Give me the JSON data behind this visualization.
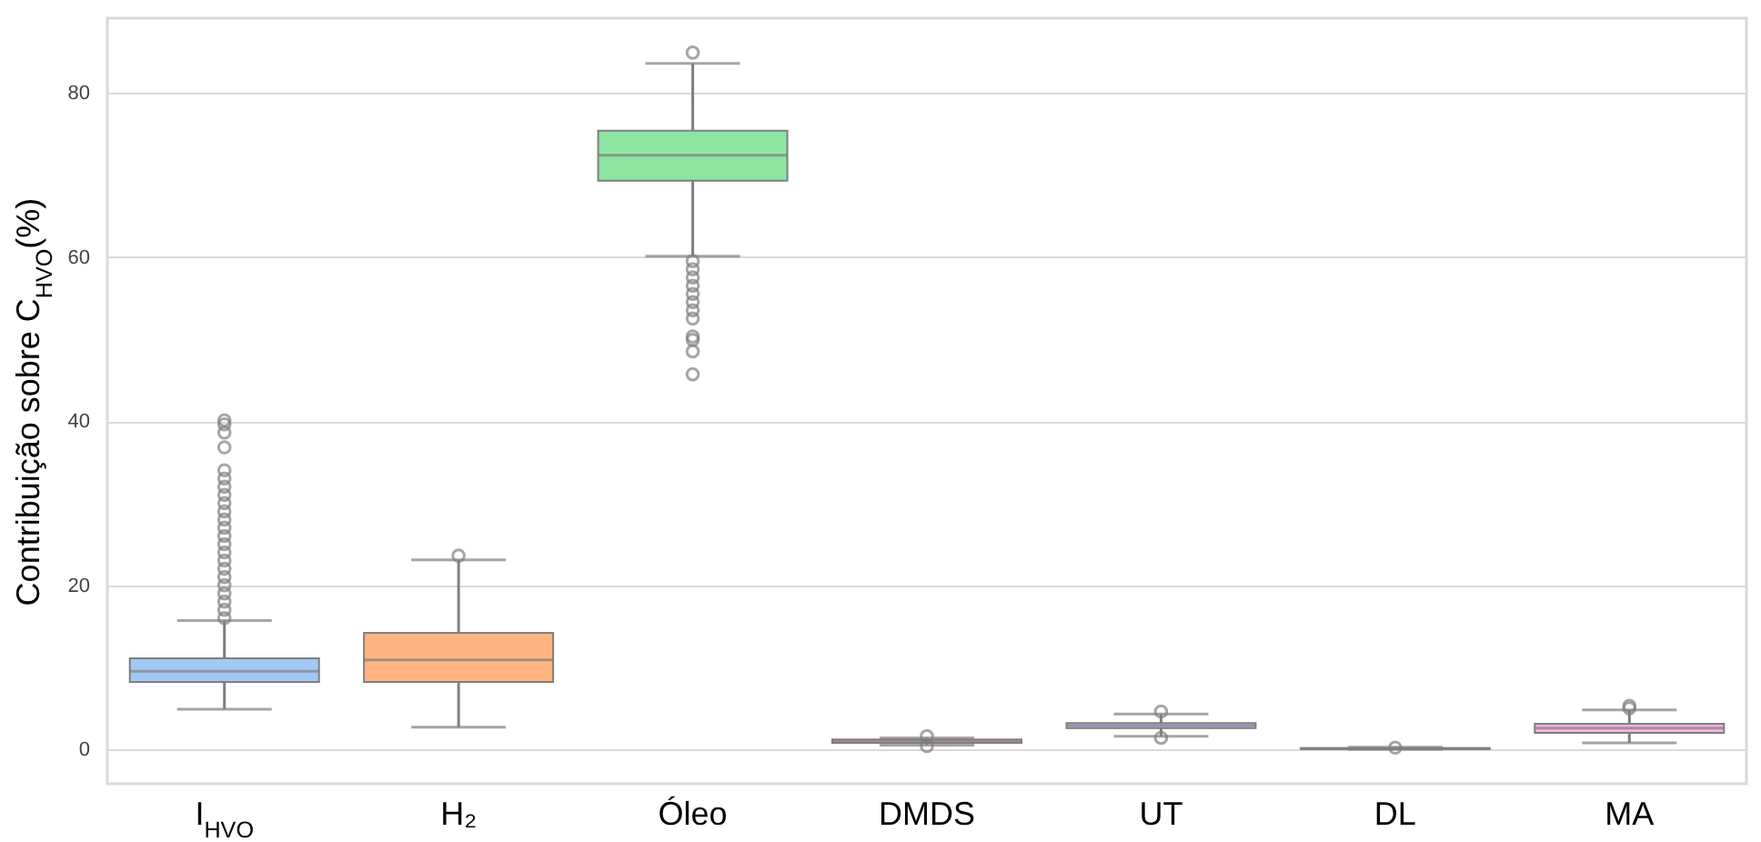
{
  "chart_data": {
    "type": "box",
    "ylabel": "Contribuição  sobre C$_{HVO}$(%)",
    "categories": [
      "I$_{HVO}$",
      "H₂",
      "Óleo",
      "DMDS",
      "UT",
      "DL",
      "MA"
    ],
    "colors": [
      "#a1c9f4",
      "#ffb482",
      "#8de5a1",
      "#ff9f9b",
      "#d0bbff",
      "#debb9b",
      "#fab0e4"
    ],
    "boxes": [
      {
        "low": 4.9,
        "q1": 8.2,
        "median": 9.5,
        "q3": 11.1,
        "high": 15.7,
        "outliers": [
          16,
          17,
          18,
          19,
          20,
          21,
          22,
          23,
          24,
          25,
          26,
          27,
          28,
          29,
          30,
          31,
          32,
          33,
          34,
          36.8,
          38.6,
          39.6,
          40.1
        ]
      },
      {
        "low": 2.7,
        "q1": 8.2,
        "median": 10.9,
        "q3": 14.2,
        "high": 23.1,
        "outliers": [
          23.6
        ]
      },
      {
        "low": 60.1,
        "q1": 69.3,
        "median": 72.4,
        "q3": 75.4,
        "high": 83.6,
        "outliers": [
          84.9,
          59.5,
          58.5,
          57.5,
          56.5,
          55.5,
          54.5,
          53.5,
          52.5,
          50.3,
          49.9,
          48.5,
          45.7
        ]
      },
      {
        "low": 0.5,
        "q1": 0.8,
        "median": 1.0,
        "q3": 1.2,
        "high": 1.4,
        "outliers": [
          0.4,
          1.6
        ]
      },
      {
        "low": 1.6,
        "q1": 2.6,
        "median": 2.9,
        "q3": 3.2,
        "high": 4.3,
        "outliers": [
          4.6,
          1.4
        ]
      },
      {
        "low": 0,
        "q1": 0.05,
        "median": 0.1,
        "q3": 0.15,
        "high": 0.25,
        "outliers": [
          0.2
        ]
      },
      {
        "low": 0.8,
        "q1": 2.0,
        "median": 2.6,
        "q3": 3.1,
        "high": 4.8,
        "outliers": [
          5.0,
          5.3
        ]
      }
    ],
    "ylim": [
      -4.2,
      89.1
    ],
    "yticks": [
      0,
      20,
      40,
      60,
      80
    ],
    "grid": "y"
  }
}
